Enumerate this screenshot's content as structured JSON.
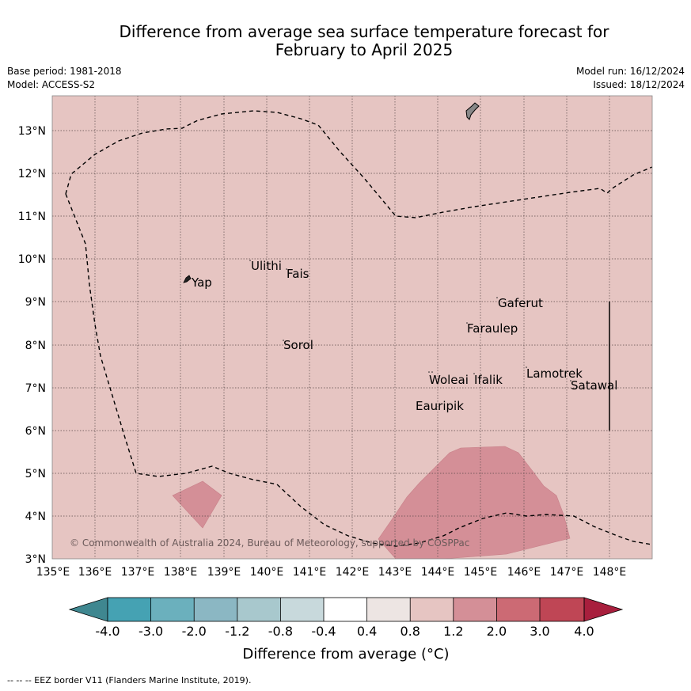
{
  "title_line1": "Difference from average sea surface temperature forecast for",
  "title_line2": "February to April 2025",
  "meta": {
    "base_period": "Base period: 1981-2018",
    "model": "Model: ACCESS-S2",
    "model_run": "Model run: 16/12/2024",
    "issued": "Issued: 18/12/2024"
  },
  "map": {
    "lon_ticks": [
      "135°E",
      "136°E",
      "137°E",
      "138°E",
      "139°E",
      "140°E",
      "141°E",
      "142°E",
      "143°E",
      "144°E",
      "145°E",
      "146°E",
      "147°E",
      "148°E"
    ],
    "lat_ticks": [
      "3°N",
      "4°N",
      "5°N",
      "6°N",
      "7°N",
      "8°N",
      "9°N",
      "10°N",
      "11°N",
      "12°N",
      "13°N"
    ],
    "background_class": "0.8 to 1.2",
    "background_color": "#e6c5c2",
    "anomaly_color": "#d48f97",
    "places": [
      "Yap",
      "Ulithi",
      "Fais",
      "Sorol",
      "Gaferut",
      "Faraulep",
      "Woleai",
      "Ifalik",
      "Lamotrek",
      "Satawal",
      "Eauripik"
    ],
    "copyright": "© Commonwealth of Australia 2024, Bureau of Meteorology, supported by COSPPac"
  },
  "legend": {
    "labels": [
      "-4.0",
      "-3.0",
      "-2.0",
      "-1.2",
      "-0.8",
      "-0.4",
      "0.4",
      "0.8",
      "1.2",
      "2.0",
      "3.0",
      "4.0"
    ],
    "colors": [
      "#3f8790",
      "#45a2b3",
      "#6bb0bd",
      "#8bb7c3",
      "#a8c8cd",
      "#c8d9dc",
      "#ffffff",
      "#ede5e3",
      "#e6c5c2",
      "#d48f97",
      "#cc6a74",
      "#bf4655",
      "#a81f3d"
    ],
    "title": "Difference from average (°C)"
  },
  "footer": "--  --  -- EEZ border V11 (Flanders Marine Institute, 2019)."
}
